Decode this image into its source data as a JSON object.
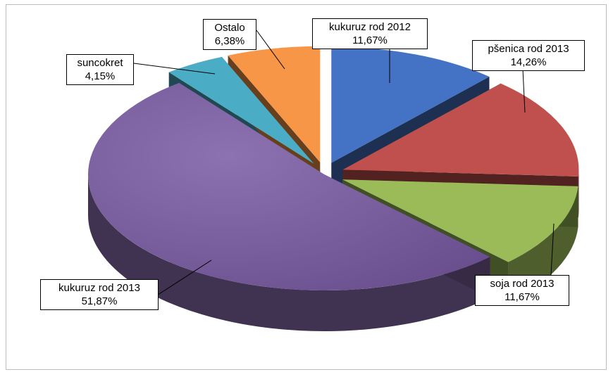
{
  "chart_data": {
    "type": "pie",
    "style": "3d-exploded",
    "legend": "none",
    "slices": [
      {
        "name": "kukuruz rod 2012",
        "value": 11.67,
        "display": "11,67%",
        "color": "#4472C4"
      },
      {
        "name": "pšenica rod 2013",
        "value": 14.26,
        "display": "14,26%",
        "color": "#C0504D"
      },
      {
        "name": "soja rod 2013",
        "value": 11.67,
        "display": "11,67%",
        "color": "#9BBB59"
      },
      {
        "name": "kukuruz rod 2013",
        "value": 51.87,
        "display": "51,87%",
        "color": "#8064A2"
      },
      {
        "name": "suncokret",
        "value": 4.15,
        "display": "4,15%",
        "color": "#4BACC6"
      },
      {
        "name": "Ostalo",
        "value": 6.38,
        "display": "6,38%",
        "color": "#F79646"
      }
    ]
  }
}
